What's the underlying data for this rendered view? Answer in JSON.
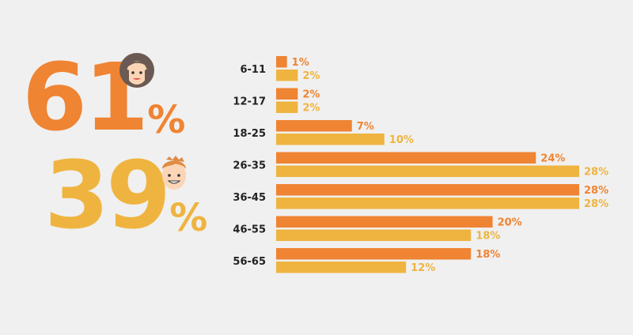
{
  "stats": {
    "female": {
      "value": "61",
      "suffix": "%"
    },
    "male": {
      "value": "39",
      "suffix": "%"
    }
  },
  "icons": {
    "female": "woman-face-icon",
    "male": "man-face-icon"
  },
  "colors": {
    "female": "#ef8433",
    "male": "#efb43f",
    "background": "#f0f0f0"
  },
  "chart_data": {
    "type": "bar",
    "orientation": "horizontal",
    "categories": [
      "6-11",
      "12-17",
      "18-25",
      "26-35",
      "36-45",
      "46-55",
      "56-65"
    ],
    "series": [
      {
        "color": "#ef8433",
        "values": [
          1,
          2,
          7,
          24,
          28,
          20,
          18
        ],
        "labels": [
          "1%",
          "2%",
          "7%",
          "24%",
          "28%",
          "20%",
          "18%"
        ]
      },
      {
        "color": "#efb43f",
        "values": [
          2,
          2,
          10,
          28,
          28,
          18,
          12
        ],
        "labels": [
          "2%",
          "2%",
          "10%",
          "28%",
          "28%",
          "18%",
          "12%"
        ]
      }
    ],
    "xlim": [
      0,
      28
    ],
    "grid": false
  }
}
